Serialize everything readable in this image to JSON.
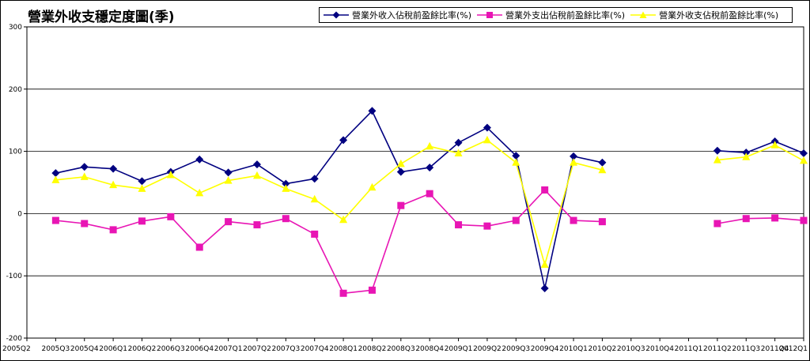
{
  "chart_data": {
    "type": "line",
    "title": "營業外收支穩定度圖(季)",
    "xlabel": "",
    "ylabel": "",
    "ylim": [
      -200,
      300
    ],
    "yticks": [
      -200,
      -100,
      0,
      100,
      200,
      300
    ],
    "grid": "horizontal",
    "legend_position": "top-right",
    "categories": [
      "2005Q2",
      "2005Q3",
      "2005Q4",
      "2006Q1",
      "2006Q2",
      "2006Q3",
      "2006Q4",
      "2007Q1",
      "2007Q2",
      "2007Q3",
      "2007Q4",
      "2008Q1",
      "2008Q2",
      "2008Q3",
      "2008Q4",
      "2009Q1",
      "2009Q2",
      "2009Q3",
      "2009Q4",
      "2010Q1",
      "2010Q2",
      "2010Q3",
      "2010Q4",
      "2011Q1",
      "2011Q2",
      "2011Q3",
      "2011Q4",
      "2012Q1"
    ],
    "series": [
      {
        "name": "營業外收入佔稅前盈餘比率(%)",
        "color": "#000080",
        "marker": "diamond",
        "values": [
          null,
          65,
          75,
          72,
          52,
          67,
          87,
          66,
          79,
          48,
          56,
          118,
          165,
          67,
          74,
          114,
          138,
          93,
          -120,
          92,
          82,
          null,
          null,
          null,
          101,
          98,
          116,
          97
        ]
      },
      {
        "name": "營業外支出佔稅前盈餘比率(%)",
        "color": "#e815b4",
        "marker": "square",
        "values": [
          null,
          -11,
          -16,
          -26,
          -12,
          -5,
          -54,
          -13,
          -18,
          -8,
          -33,
          -128,
          -123,
          13,
          32,
          -18,
          -20,
          -11,
          38,
          -11,
          -13,
          null,
          null,
          null,
          -16,
          -8,
          -7,
          -11
        ]
      },
      {
        "name": "營業外收支佔稅前盈餘比率(%)",
        "color": "#ffff00",
        "marker": "triangle",
        "values": [
          null,
          54,
          59,
          46,
          40,
          62,
          33,
          53,
          61,
          40,
          23,
          -10,
          42,
          80,
          108,
          97,
          118,
          82,
          -82,
          82,
          70,
          null,
          null,
          null,
          86,
          91,
          110,
          85
        ]
      }
    ]
  }
}
